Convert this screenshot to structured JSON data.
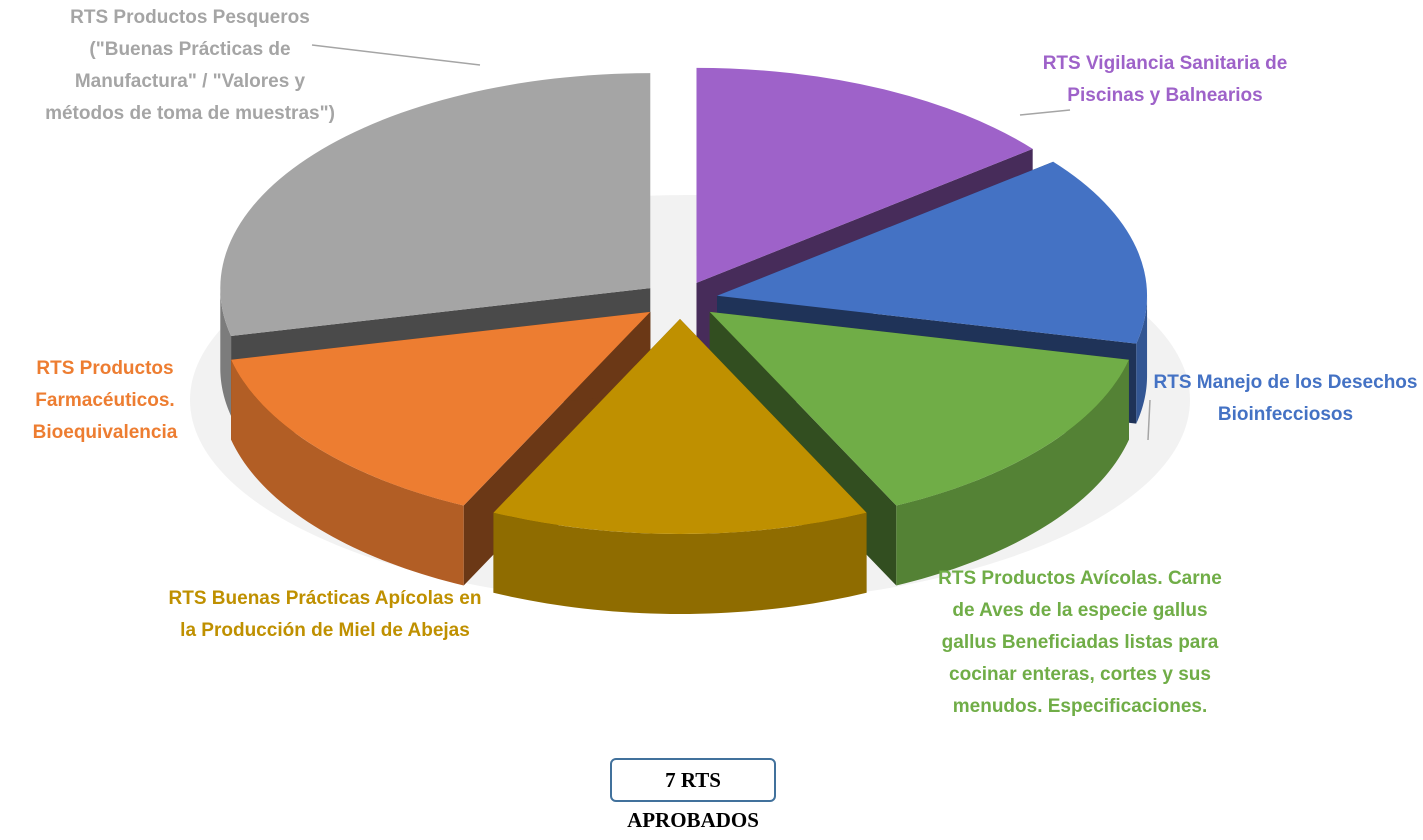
{
  "chart_data": {
    "type": "pie",
    "categories": [
      "RTS Vigilancia Sanitaria de Piscinas y Balnearios",
      "RTS Manejo de los Desechos Bioinfecciosos",
      "RTS Productos Avícolas. Carne de Aves de la especie gallus gallus Beneficiadas listas para cocinar enteras, cortes y sus menudos. Especificaciones.",
      "RTS Buenas Prácticas Apícolas en la Producción de Miel de Abejas",
      "RTS Productos Farmacéuticos. Bioequivalencia",
      "RTS Productos Pesqueros (\"Buenas Prácticas de Manufactura\" / \"Valores y métodos de toma de muestras\")"
    ],
    "values": [
      1,
      1,
      1,
      1,
      1,
      2
    ],
    "colors": [
      "#9e62c9",
      "#4472c4",
      "#70ad47",
      "#bf9000",
      "#ed7d31",
      "#a5a5a5"
    ],
    "annotation": "7 RTS APROBADOS"
  }
}
